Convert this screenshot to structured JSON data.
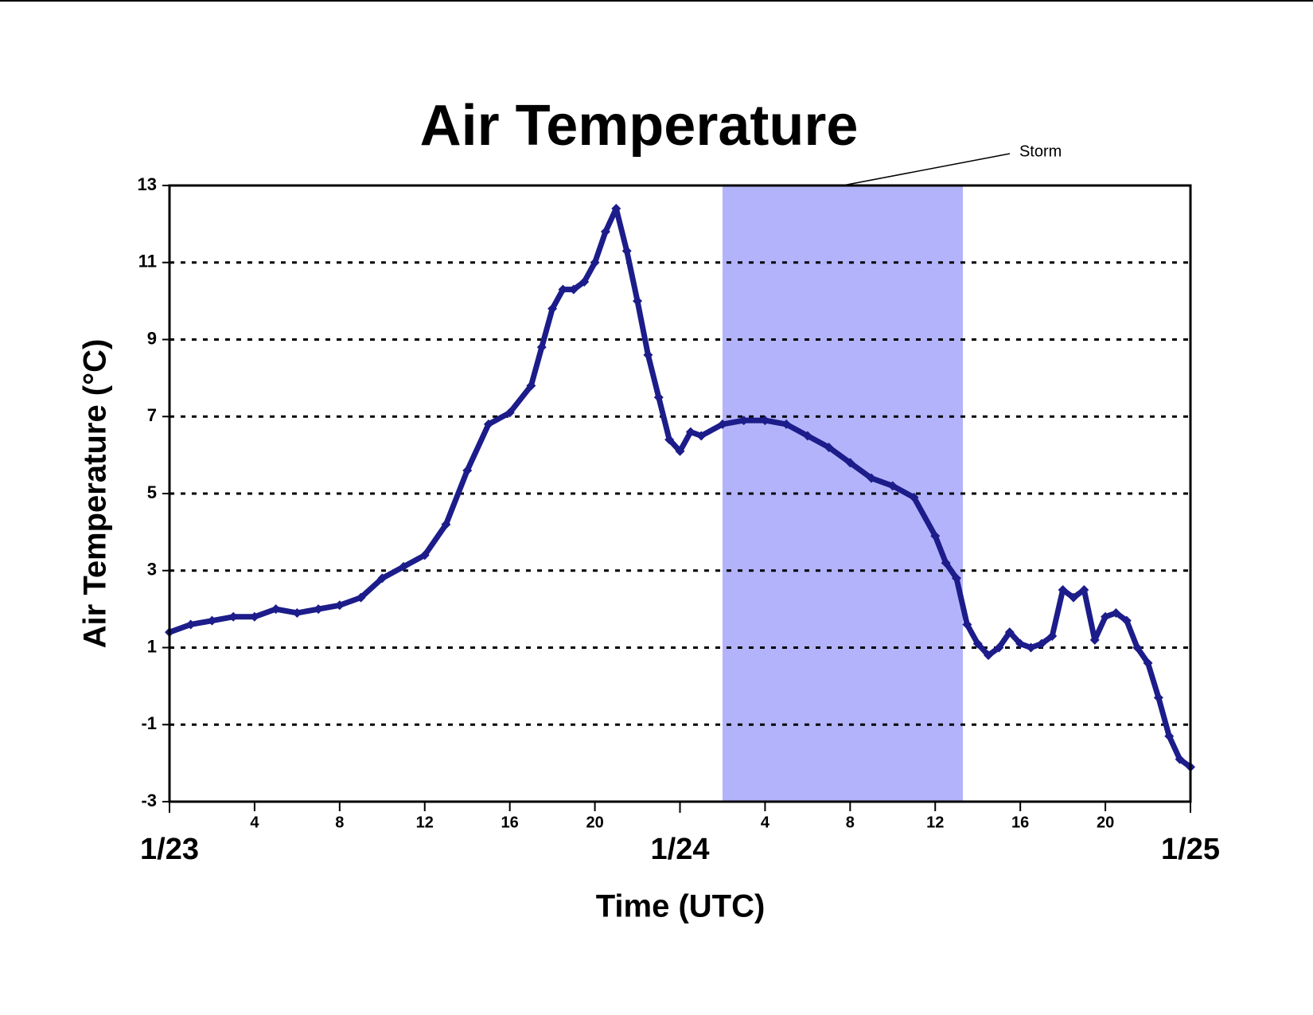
{
  "chart_data": {
    "type": "line",
    "title": "Air Temperature",
    "x_label": "Time (UTC)",
    "y_label": "Air Temperature (°C)",
    "xlim": [
      0,
      48
    ],
    "ylim": [
      -3,
      13
    ],
    "yticks": [
      -3,
      -1,
      1,
      3,
      5,
      7,
      9,
      11,
      13
    ],
    "xticks": [
      4,
      8,
      12,
      16,
      20,
      {
        "value": 28,
        "label": "4"
      },
      {
        "value": 32,
        "label": "8"
      },
      {
        "value": 36,
        "label": "12"
      },
      {
        "value": 40,
        "label": "16"
      },
      {
        "value": 44,
        "label": "20"
      }
    ],
    "date_ticks": [
      {
        "value": 0,
        "label": "1/23"
      },
      {
        "value": 24,
        "label": "1/24"
      },
      {
        "value": 48,
        "label": "1/25"
      }
    ],
    "grid": true,
    "annotations": [
      {
        "text": "Storm",
        "x_start": 26,
        "x_end": 37.3,
        "color": "#b3b3fb"
      }
    ],
    "series": [
      {
        "name": "Air Temperature",
        "color": "#1c1c8a",
        "x": [
          0,
          1,
          2,
          3,
          4,
          5,
          6,
          7,
          8,
          9,
          10,
          11,
          12,
          13,
          14,
          15,
          16,
          17,
          17.5,
          18,
          18.5,
          19,
          19.5,
          20,
          20.5,
          21,
          21.5,
          22,
          22.5,
          23,
          23.5,
          24,
          24.5,
          25,
          26,
          27,
          28,
          29,
          30,
          31,
          32,
          33,
          34,
          35,
          36,
          36.5,
          37,
          37.5,
          38,
          38.5,
          39,
          39.5,
          40,
          40.5,
          41,
          41.5,
          42,
          42.5,
          43,
          43.5,
          44,
          44.5,
          45,
          45.5,
          46,
          46.5,
          47,
          47.5,
          48
        ],
        "values": [
          1.4,
          1.6,
          1.7,
          1.8,
          1.8,
          2.0,
          1.9,
          2.0,
          2.1,
          2.3,
          2.8,
          3.1,
          3.4,
          4.2,
          5.6,
          6.8,
          7.1,
          7.8,
          8.8,
          9.8,
          10.3,
          10.3,
          10.5,
          11.0,
          11.8,
          12.4,
          11.3,
          10.0,
          8.6,
          7.5,
          6.4,
          6.1,
          6.6,
          6.5,
          6.8,
          6.9,
          6.9,
          6.8,
          6.5,
          6.2,
          5.8,
          5.4,
          5.2,
          4.9,
          3.9,
          3.2,
          2.8,
          1.6,
          1.1,
          0.8,
          1.0,
          1.4,
          1.1,
          1.0,
          1.1,
          1.3,
          2.5,
          2.3,
          2.5,
          1.2,
          1.8,
          1.9,
          1.7,
          1.0,
          0.6,
          -0.3,
          -1.3,
          -1.9,
          -2.1
        ]
      }
    ]
  }
}
